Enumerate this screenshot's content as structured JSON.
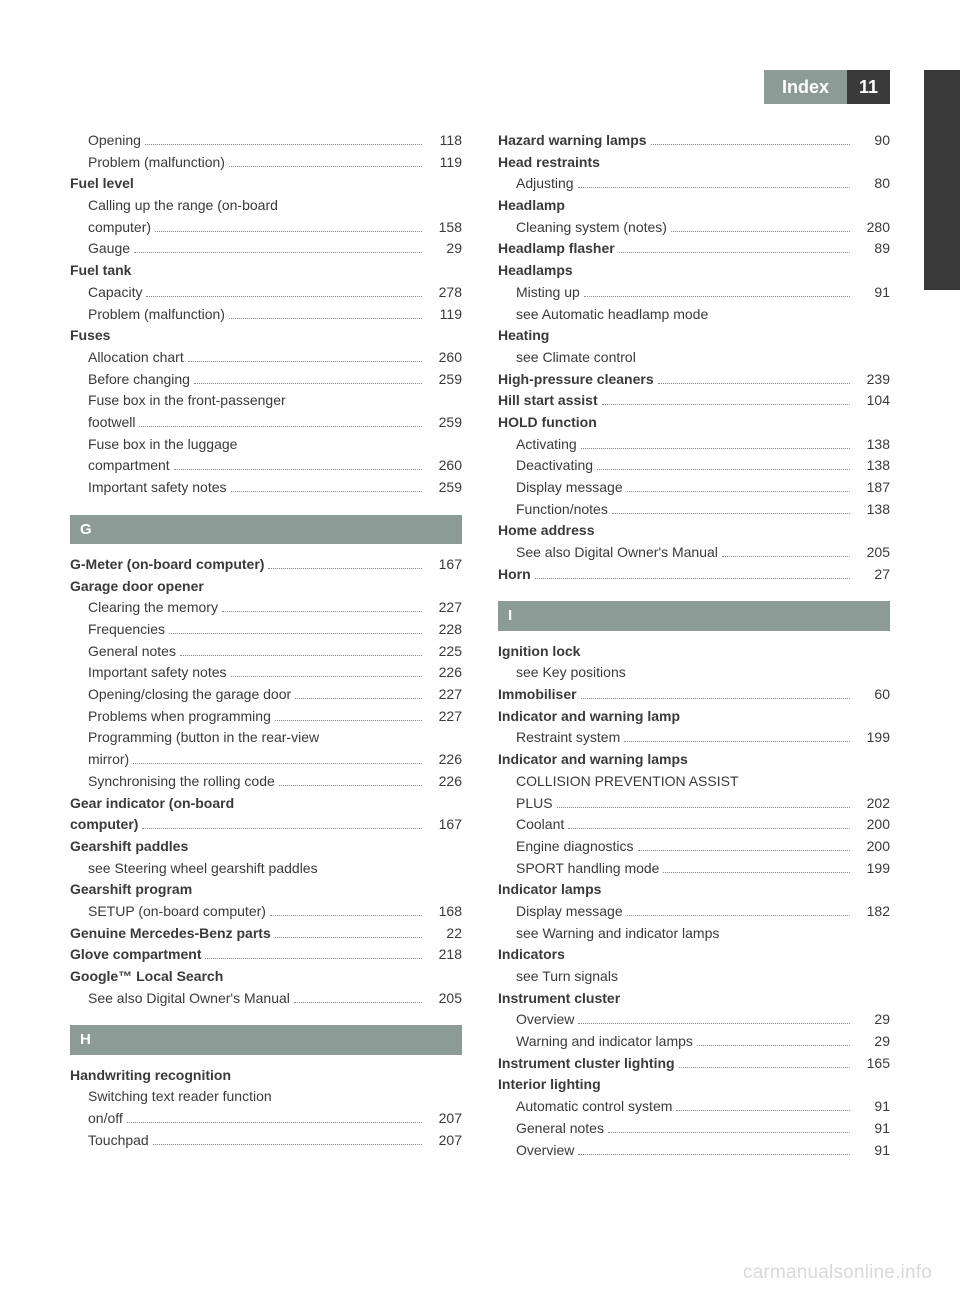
{
  "header": {
    "title": "Index",
    "page": "11"
  },
  "watermark": "carmanualsonline.info",
  "col1": [
    {
      "t": "sub",
      "label": "Opening",
      "pg": "118"
    },
    {
      "t": "sub",
      "label": "Problem (malfunction)",
      "pg": "119"
    },
    {
      "t": "head",
      "label": "Fuel level"
    },
    {
      "t": "sub",
      "label": "Calling up the range (on-board computer)",
      "pg": "158",
      "ml": true
    },
    {
      "t": "sub",
      "label": "Gauge",
      "pg": "29"
    },
    {
      "t": "head",
      "label": "Fuel tank"
    },
    {
      "t": "sub",
      "label": "Capacity",
      "pg": "278"
    },
    {
      "t": "sub",
      "label": "Problem (malfunction)",
      "pg": "119"
    },
    {
      "t": "head",
      "label": "Fuses"
    },
    {
      "t": "sub",
      "label": "Allocation chart",
      "pg": "260"
    },
    {
      "t": "sub",
      "label": "Before changing",
      "pg": "259"
    },
    {
      "t": "sub",
      "label": "Fuse box in the front-passenger footwell",
      "pg": "259",
      "ml": true
    },
    {
      "t": "sub",
      "label": "Fuse box in the luggage compartment",
      "pg": "260",
      "ml": true
    },
    {
      "t": "sub",
      "label": "Important safety notes",
      "pg": "259"
    },
    {
      "t": "letter",
      "label": "G"
    },
    {
      "t": "boldentry",
      "label": "G-Meter (on-board computer)",
      "pg": "167"
    },
    {
      "t": "head",
      "label": "Garage door opener"
    },
    {
      "t": "sub",
      "label": "Clearing the memory",
      "pg": "227"
    },
    {
      "t": "sub",
      "label": "Frequencies",
      "pg": "228"
    },
    {
      "t": "sub",
      "label": "General notes",
      "pg": "225"
    },
    {
      "t": "sub",
      "label": "Important safety notes",
      "pg": "226"
    },
    {
      "t": "sub",
      "label": "Opening/closing the garage door",
      "pg": "227"
    },
    {
      "t": "sub",
      "label": "Problems when programming",
      "pg": "227"
    },
    {
      "t": "sub",
      "label": "Programming (button in the rear-view mirror)",
      "pg": "226",
      "ml": true
    },
    {
      "t": "sub",
      "label": "Synchronising the rolling code",
      "pg": "226"
    },
    {
      "t": "boldentry",
      "label": "Gear indicator (on-board computer)",
      "pg": "167",
      "ml": true
    },
    {
      "t": "head",
      "label": "Gearshift paddles"
    },
    {
      "t": "subnopage",
      "label": "see Steering wheel gearshift paddles"
    },
    {
      "t": "head",
      "label": "Gearshift program"
    },
    {
      "t": "sub",
      "label": "SETUP (on-board computer)",
      "pg": "168"
    },
    {
      "t": "boldentry",
      "label": "Genuine Mercedes-Benz parts",
      "pg": "22"
    },
    {
      "t": "boldentry",
      "label": "Glove compartment",
      "pg": "218"
    },
    {
      "t": "head",
      "label": "Google™ Local Search"
    },
    {
      "t": "sub",
      "label": "See also Digital Owner's Manual",
      "pg": "205"
    },
    {
      "t": "letter",
      "label": "H"
    },
    {
      "t": "head",
      "label": "Handwriting recognition"
    },
    {
      "t": "sub",
      "label": "Switching text reader function on/off",
      "pg": "207",
      "ml": true
    },
    {
      "t": "sub",
      "label": "Touchpad",
      "pg": "207"
    }
  ],
  "col2": [
    {
      "t": "boldentry",
      "label": "Hazard warning lamps",
      "pg": "90"
    },
    {
      "t": "head",
      "label": "Head restraints"
    },
    {
      "t": "sub",
      "label": "Adjusting",
      "pg": "80"
    },
    {
      "t": "head",
      "label": "Headlamp"
    },
    {
      "t": "sub",
      "label": "Cleaning system (notes)",
      "pg": "280"
    },
    {
      "t": "boldentry",
      "label": "Headlamp flasher",
      "pg": "89"
    },
    {
      "t": "head",
      "label": "Headlamps"
    },
    {
      "t": "sub",
      "label": "Misting up",
      "pg": "91"
    },
    {
      "t": "subnopage",
      "label": "see Automatic headlamp mode"
    },
    {
      "t": "head",
      "label": "Heating"
    },
    {
      "t": "subnopage",
      "label": "see Climate control"
    },
    {
      "t": "boldentry",
      "label": "High-pressure cleaners",
      "pg": "239"
    },
    {
      "t": "boldentry",
      "label": "Hill start assist",
      "pg": "104"
    },
    {
      "t": "head",
      "label": "HOLD function"
    },
    {
      "t": "sub",
      "label": "Activating",
      "pg": "138"
    },
    {
      "t": "sub",
      "label": "Deactivating",
      "pg": "138"
    },
    {
      "t": "sub",
      "label": "Display message",
      "pg": "187"
    },
    {
      "t": "sub",
      "label": "Function/notes",
      "pg": "138"
    },
    {
      "t": "head",
      "label": "Home address"
    },
    {
      "t": "sub",
      "label": "See also Digital Owner's Manual",
      "pg": "205"
    },
    {
      "t": "boldentry",
      "label": "Horn",
      "pg": "27"
    },
    {
      "t": "letter",
      "label": "I"
    },
    {
      "t": "head",
      "label": "Ignition lock"
    },
    {
      "t": "subnopage",
      "label": "see Key positions"
    },
    {
      "t": "boldentry",
      "label": "Immobiliser",
      "pg": "60"
    },
    {
      "t": "head",
      "label": "Indicator and warning lamp"
    },
    {
      "t": "sub",
      "label": "Restraint system",
      "pg": "199"
    },
    {
      "t": "head",
      "label": "Indicator and warning lamps"
    },
    {
      "t": "sub",
      "label": "COLLISION PREVENTION ASSIST PLUS",
      "pg": "202",
      "ml": true
    },
    {
      "t": "sub",
      "label": "Coolant",
      "pg": "200"
    },
    {
      "t": "sub",
      "label": "Engine diagnostics",
      "pg": "200"
    },
    {
      "t": "sub",
      "label": "SPORT handling mode",
      "pg": "199"
    },
    {
      "t": "head",
      "label": "Indicator lamps"
    },
    {
      "t": "sub",
      "label": "Display message",
      "pg": "182"
    },
    {
      "t": "subnopage",
      "label": "see Warning and indicator lamps"
    },
    {
      "t": "head",
      "label": "Indicators"
    },
    {
      "t": "subnopage",
      "label": "see Turn signals"
    },
    {
      "t": "head",
      "label": "Instrument cluster"
    },
    {
      "t": "sub",
      "label": "Overview",
      "pg": "29"
    },
    {
      "t": "sub",
      "label": "Warning and indicator lamps",
      "pg": "29"
    },
    {
      "t": "boldentry",
      "label": "Instrument cluster lighting",
      "pg": "165"
    },
    {
      "t": "head",
      "label": "Interior lighting"
    },
    {
      "t": "sub",
      "label": "Automatic control system",
      "pg": "91"
    },
    {
      "t": "sub",
      "label": "General notes",
      "pg": "91"
    },
    {
      "t": "sub",
      "label": "Overview",
      "pg": "91"
    }
  ]
}
